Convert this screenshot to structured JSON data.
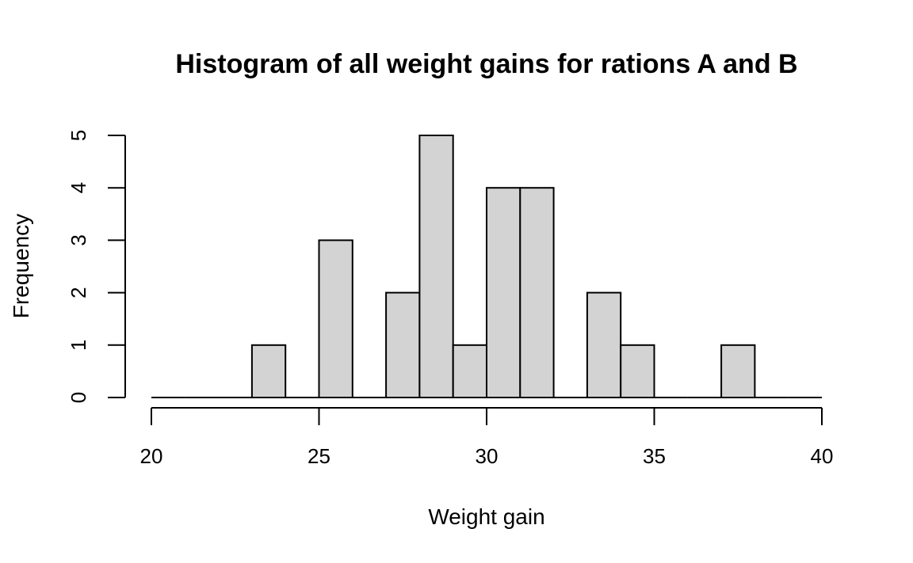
{
  "chart_data": {
    "type": "bar",
    "title": "Histogram of all weight gains for rations A and B",
    "xlabel": "Weight gain",
    "ylabel": "Frequency",
    "bin_width": 1,
    "bin_starts": [
      20,
      21,
      22,
      23,
      24,
      25,
      26,
      27,
      28,
      29,
      30,
      31,
      32,
      33,
      34,
      35,
      36,
      37,
      38,
      39
    ],
    "values": [
      0,
      0,
      0,
      1,
      0,
      3,
      0,
      2,
      5,
      1,
      4,
      4,
      0,
      2,
      1,
      0,
      0,
      1,
      0,
      0
    ],
    "xlim": [
      20,
      40
    ],
    "ylim": [
      0,
      5
    ],
    "x_ticks": [
      20,
      25,
      30,
      35,
      40
    ],
    "y_ticks": [
      0,
      1,
      2,
      3,
      4,
      5
    ],
    "bar_color": "#d3d3d3",
    "grid": false
  }
}
